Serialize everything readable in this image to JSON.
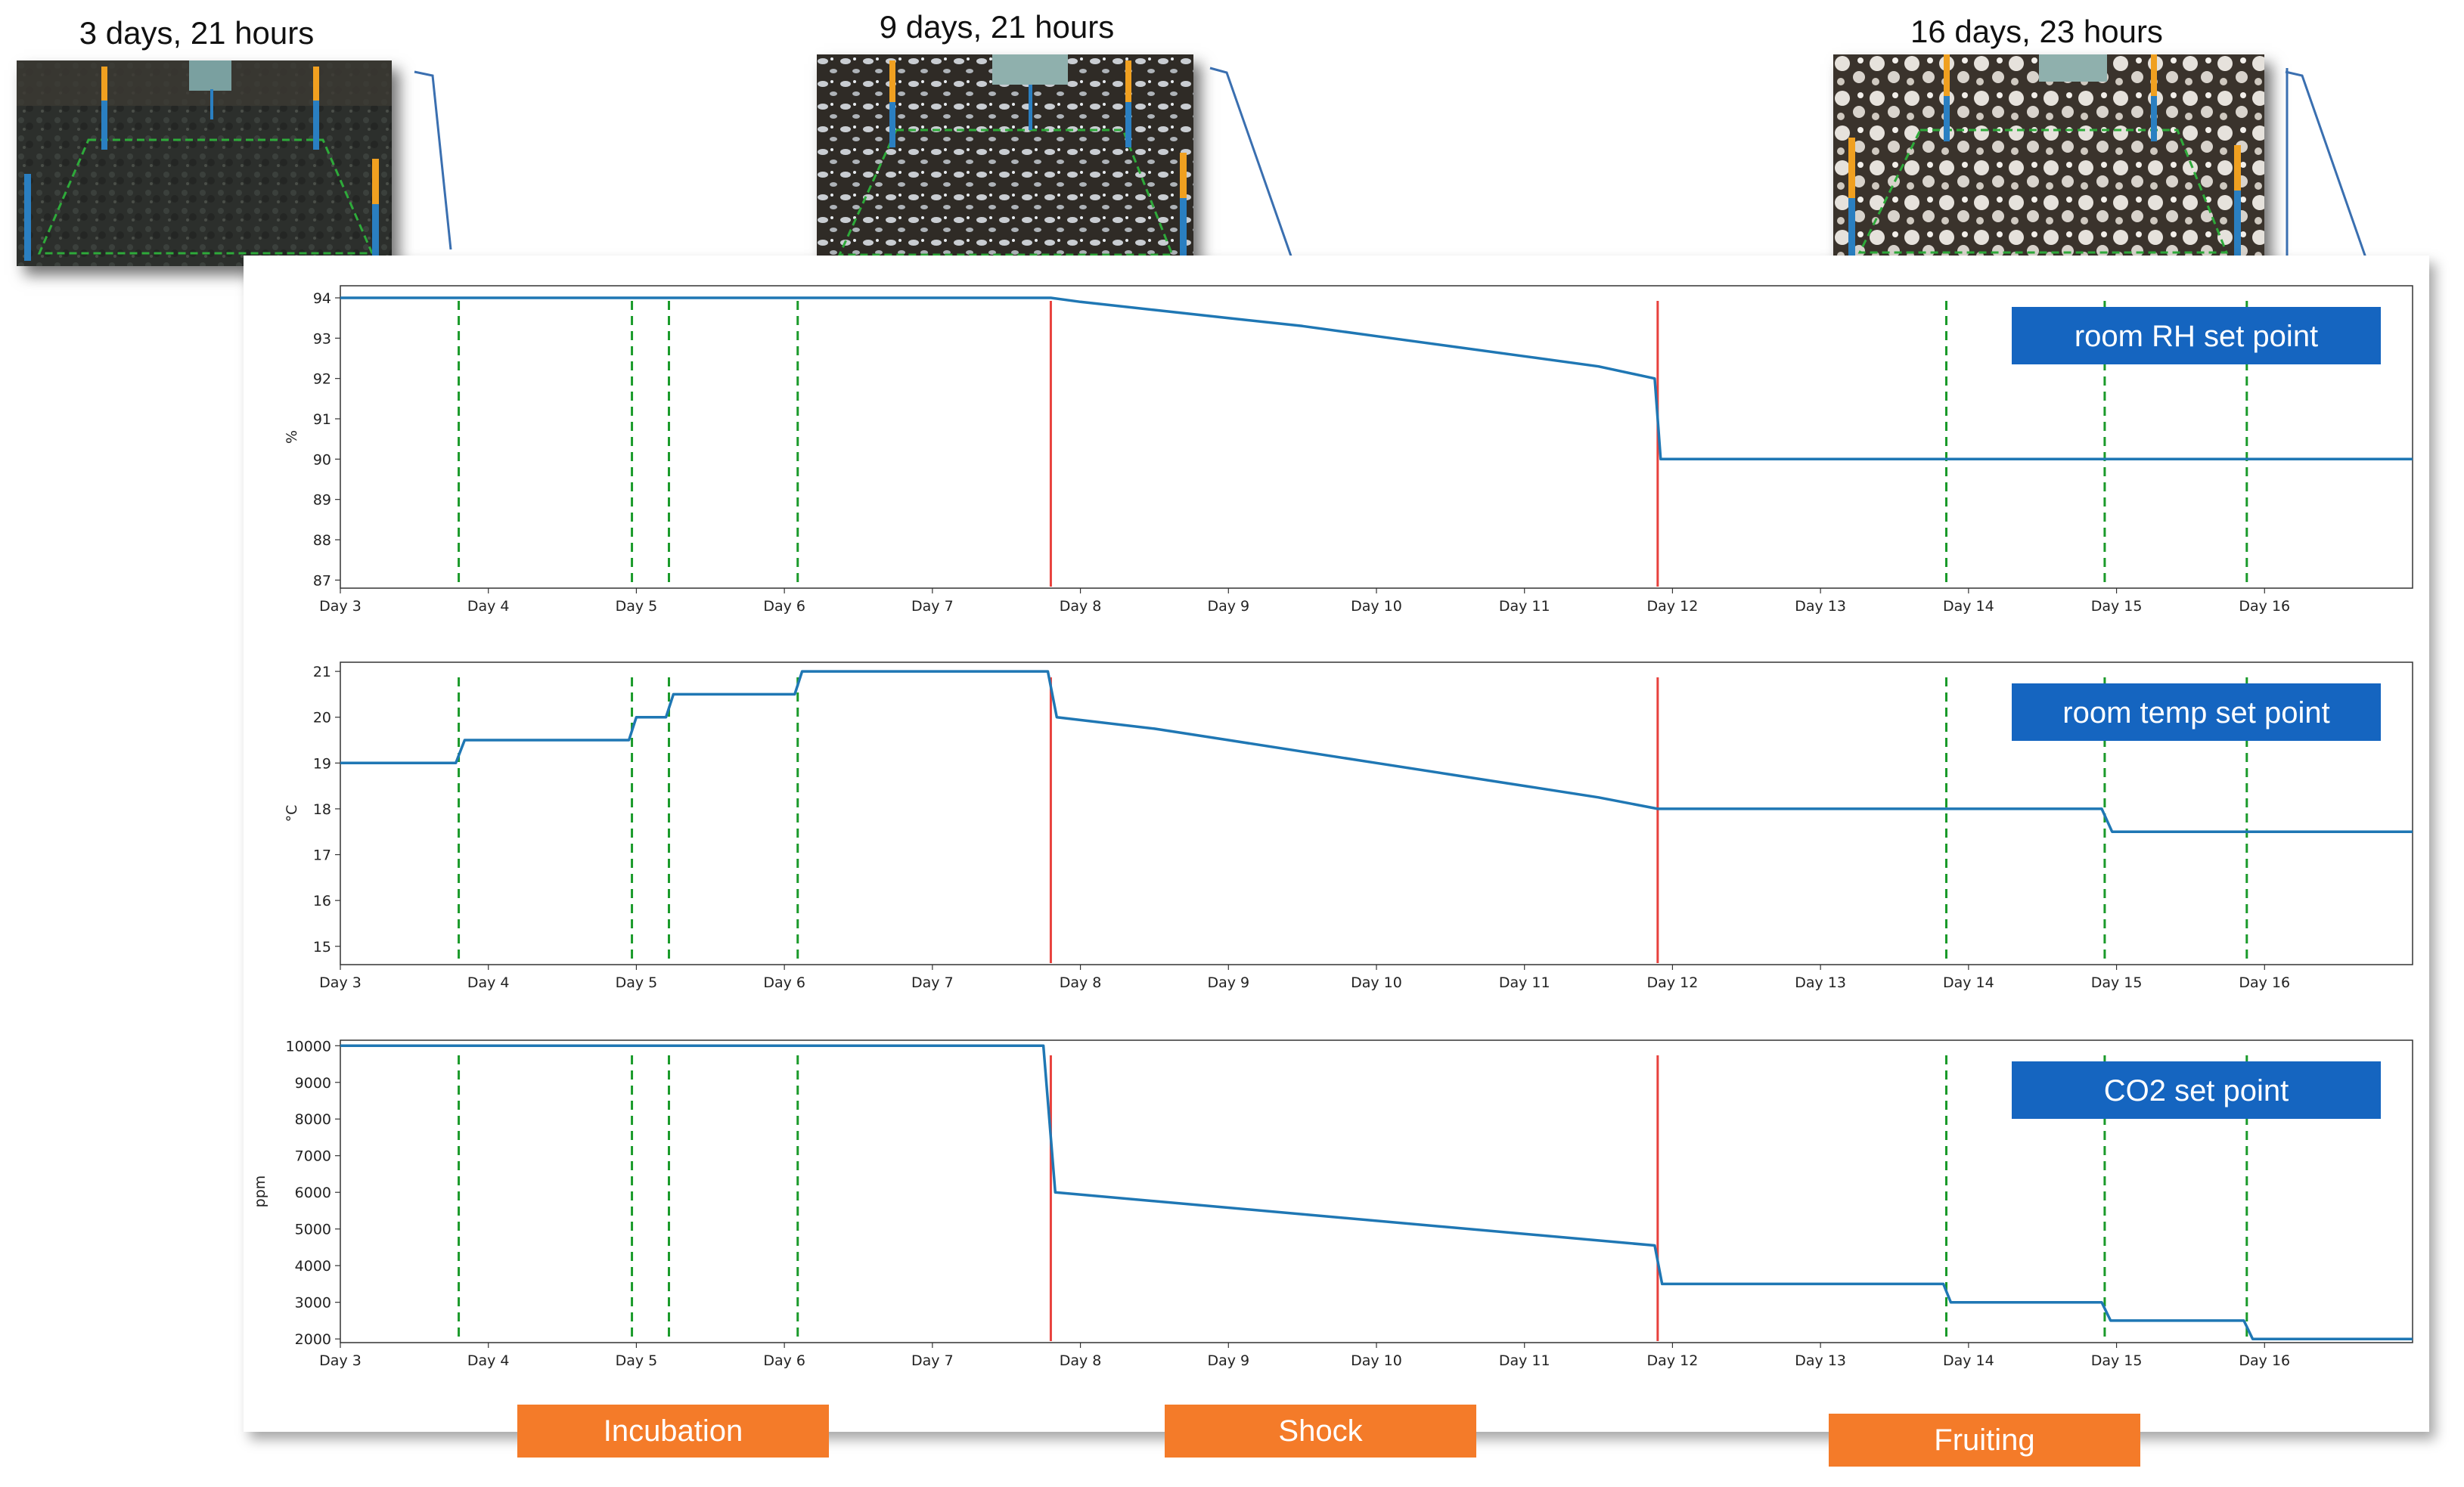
{
  "photos": [
    {
      "label": "3 days, 21 hours"
    },
    {
      "label": "9 days, 21 hours"
    },
    {
      "label": "16 days, 23 hours"
    }
  ],
  "phases": [
    "Incubation",
    "Shock",
    "Fruiting"
  ],
  "colors": {
    "series": "#1f77b4",
    "phase_change": "#e8413c",
    "photo_marker": "#1a9a2a",
    "badge": "#1565c0",
    "phase_box": "#f47b29"
  },
  "chart_data": [
    {
      "type": "line",
      "badge": "room RH set point",
      "ylabel": "%",
      "x_ticks": [
        "Day 3",
        "Day 4",
        "Day 5",
        "Day 6",
        "Day 7",
        "Day 8",
        "Day 9",
        "Day 10",
        "Day 11",
        "Day 12",
        "Day 13",
        "Day 14",
        "Day 15",
        "Day 16"
      ],
      "y_ticks": [
        87,
        88,
        89,
        90,
        91,
        92,
        93,
        94
      ],
      "xlim": [
        3,
        17
      ],
      "ylim": [
        86.8,
        94.3
      ],
      "grid": false,
      "red_lines": [
        7.8,
        11.9
      ],
      "green_lines": [
        3.8,
        4.97,
        5.22,
        6.09,
        13.85,
        14.92,
        15.88
      ],
      "series": [
        {
          "x": [
            3,
            7.8,
            8.0,
            8.5,
            9.0,
            9.5,
            10.0,
            10.5,
            11.0,
            11.5,
            11.88,
            11.92,
            17
          ],
          "y": [
            94,
            94,
            93.9,
            93.7,
            93.5,
            93.3,
            93.05,
            92.8,
            92.55,
            92.3,
            92.0,
            90.0,
            90.0
          ]
        }
      ]
    },
    {
      "type": "line",
      "badge": "room temp set point",
      "ylabel": "°C",
      "x_ticks": [
        "Day 3",
        "Day 4",
        "Day 5",
        "Day 6",
        "Day 7",
        "Day 8",
        "Day 9",
        "Day 10",
        "Day 11",
        "Day 12",
        "Day 13",
        "Day 14",
        "Day 15",
        "Day 16"
      ],
      "y_ticks": [
        15,
        16,
        17,
        18,
        19,
        20,
        21
      ],
      "xlim": [
        3,
        17
      ],
      "ylim": [
        14.6,
        21.2
      ],
      "grid": false,
      "red_lines": [
        7.8,
        11.9
      ],
      "green_lines": [
        3.8,
        4.97,
        5.22,
        6.09,
        13.85,
        14.92,
        15.88
      ],
      "series": [
        {
          "x": [
            3,
            3.78,
            3.84,
            4.95,
            5.0,
            5.2,
            5.25,
            6.07,
            6.12,
            7.78,
            7.84,
            8.5,
            9.0,
            9.5,
            10.0,
            10.5,
            11.0,
            11.5,
            11.9,
            14.9,
            14.97,
            17
          ],
          "y": [
            19,
            19,
            19.5,
            19.5,
            20.0,
            20.0,
            20.5,
            20.5,
            21.0,
            21.0,
            20.0,
            19.75,
            19.5,
            19.25,
            19.0,
            18.75,
            18.5,
            18.25,
            18.0,
            18.0,
            17.5,
            17.5
          ]
        }
      ]
    },
    {
      "type": "line",
      "badge": "CO2 set point",
      "ylabel": "ppm",
      "x_ticks": [
        "Day 3",
        "Day 4",
        "Day 5",
        "Day 6",
        "Day 7",
        "Day 8",
        "Day 9",
        "Day 10",
        "Day 11",
        "Day 12",
        "Day 13",
        "Day 14",
        "Day 15",
        "Day 16"
      ],
      "y_ticks": [
        2000,
        3000,
        4000,
        5000,
        6000,
        7000,
        8000,
        9000,
        10000
      ],
      "xlim": [
        3,
        17
      ],
      "ylim": [
        1900,
        10150
      ],
      "grid": false,
      "red_lines": [
        7.8,
        11.9
      ],
      "green_lines": [
        3.8,
        4.97,
        5.22,
        6.09,
        13.85,
        14.92,
        15.88
      ],
      "series": [
        {
          "x": [
            3,
            7.75,
            7.83,
            11.88,
            11.93,
            13.83,
            13.88,
            14.9,
            14.96,
            15.86,
            15.92,
            17
          ],
          "y": [
            10000,
            10000,
            6000,
            4550,
            3500,
            3500,
            3000,
            3000,
            2500,
            2500,
            2000,
            2000
          ]
        }
      ]
    }
  ]
}
